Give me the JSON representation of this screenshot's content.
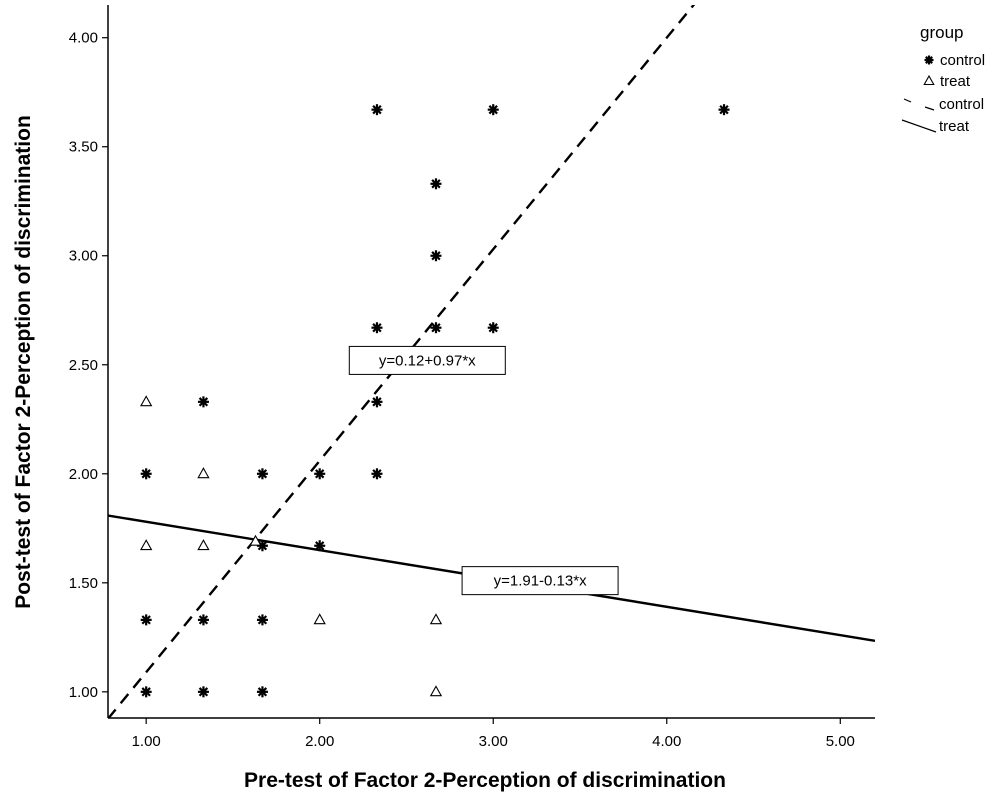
{
  "chart_data": {
    "type": "scatter",
    "xlabel": "Pre-test of Factor 2-Perception of discrimination",
    "ylabel": "Post-test of Factor 2-Perception of discrimination",
    "xlim": [
      0.78,
      5.2
    ],
    "ylim": [
      0.88,
      4.15
    ],
    "x_ticks": [
      {
        "value": 1,
        "label": "1.00"
      },
      {
        "value": 2,
        "label": "2.00"
      },
      {
        "value": 3,
        "label": "3.00"
      },
      {
        "value": 4,
        "label": "4.00"
      },
      {
        "value": 5,
        "label": "5.00"
      }
    ],
    "y_ticks": [
      {
        "value": 1,
        "label": "1.00"
      },
      {
        "value": 1.5,
        "label": "1.50"
      },
      {
        "value": 2,
        "label": "2.00"
      },
      {
        "value": 2.5,
        "label": "2.50"
      },
      {
        "value": 3,
        "label": "3.00"
      },
      {
        "value": 3.5,
        "label": "3.50"
      },
      {
        "value": 4,
        "label": "4.00"
      }
    ],
    "grid": false,
    "legend": {
      "title": "group",
      "position": "top-right",
      "entries": [
        {
          "label": "control",
          "kind": "marker",
          "marker": "asterisk"
        },
        {
          "label": "treat",
          "kind": "marker",
          "marker": "triangle"
        },
        {
          "label": "control",
          "kind": "line",
          "style": "dashed"
        },
        {
          "label": "treat",
          "kind": "line",
          "style": "solid"
        }
      ]
    },
    "series": [
      {
        "name": "control",
        "marker": "asterisk",
        "points": [
          [
            1.0,
            1.0
          ],
          [
            1.33,
            1.0
          ],
          [
            1.67,
            1.0
          ],
          [
            1.0,
            1.33
          ],
          [
            1.33,
            1.33
          ],
          [
            1.67,
            1.33
          ],
          [
            1.67,
            1.67
          ],
          [
            2.0,
            1.67
          ],
          [
            1.0,
            2.0
          ],
          [
            1.67,
            2.0
          ],
          [
            2.0,
            2.0
          ],
          [
            2.33,
            2.0
          ],
          [
            1.33,
            2.33
          ],
          [
            2.33,
            2.33
          ],
          [
            2.33,
            2.67
          ],
          [
            2.67,
            2.67
          ],
          [
            3.0,
            2.67
          ],
          [
            2.67,
            3.0
          ],
          [
            2.67,
            3.33
          ],
          [
            2.33,
            3.67
          ],
          [
            3.0,
            3.67
          ],
          [
            4.33,
            3.67
          ]
        ],
        "fit": {
          "intercept": 0.12,
          "slope": 0.97,
          "style": "dashed",
          "equation": "y=0.12+0.97*x"
        }
      },
      {
        "name": "treat",
        "marker": "triangle",
        "points": [
          [
            1.0,
            2.33
          ],
          [
            1.33,
            2.0
          ],
          [
            1.0,
            1.67
          ],
          [
            1.33,
            1.67
          ],
          [
            1.63,
            1.69
          ],
          [
            2.0,
            1.33
          ],
          [
            2.67,
            1.33
          ],
          [
            2.67,
            1.0
          ]
        ],
        "fit": {
          "intercept": 1.91,
          "slope": -0.13,
          "style": "solid",
          "equation": "y=1.91-0.13*x"
        }
      }
    ],
    "annotations": [
      {
        "text": "y=0.12+0.97*x",
        "x": 2.62,
        "y": 2.52
      },
      {
        "text": "y=1.91-0.13*x",
        "x": 3.27,
        "y": 1.51
      }
    ]
  }
}
